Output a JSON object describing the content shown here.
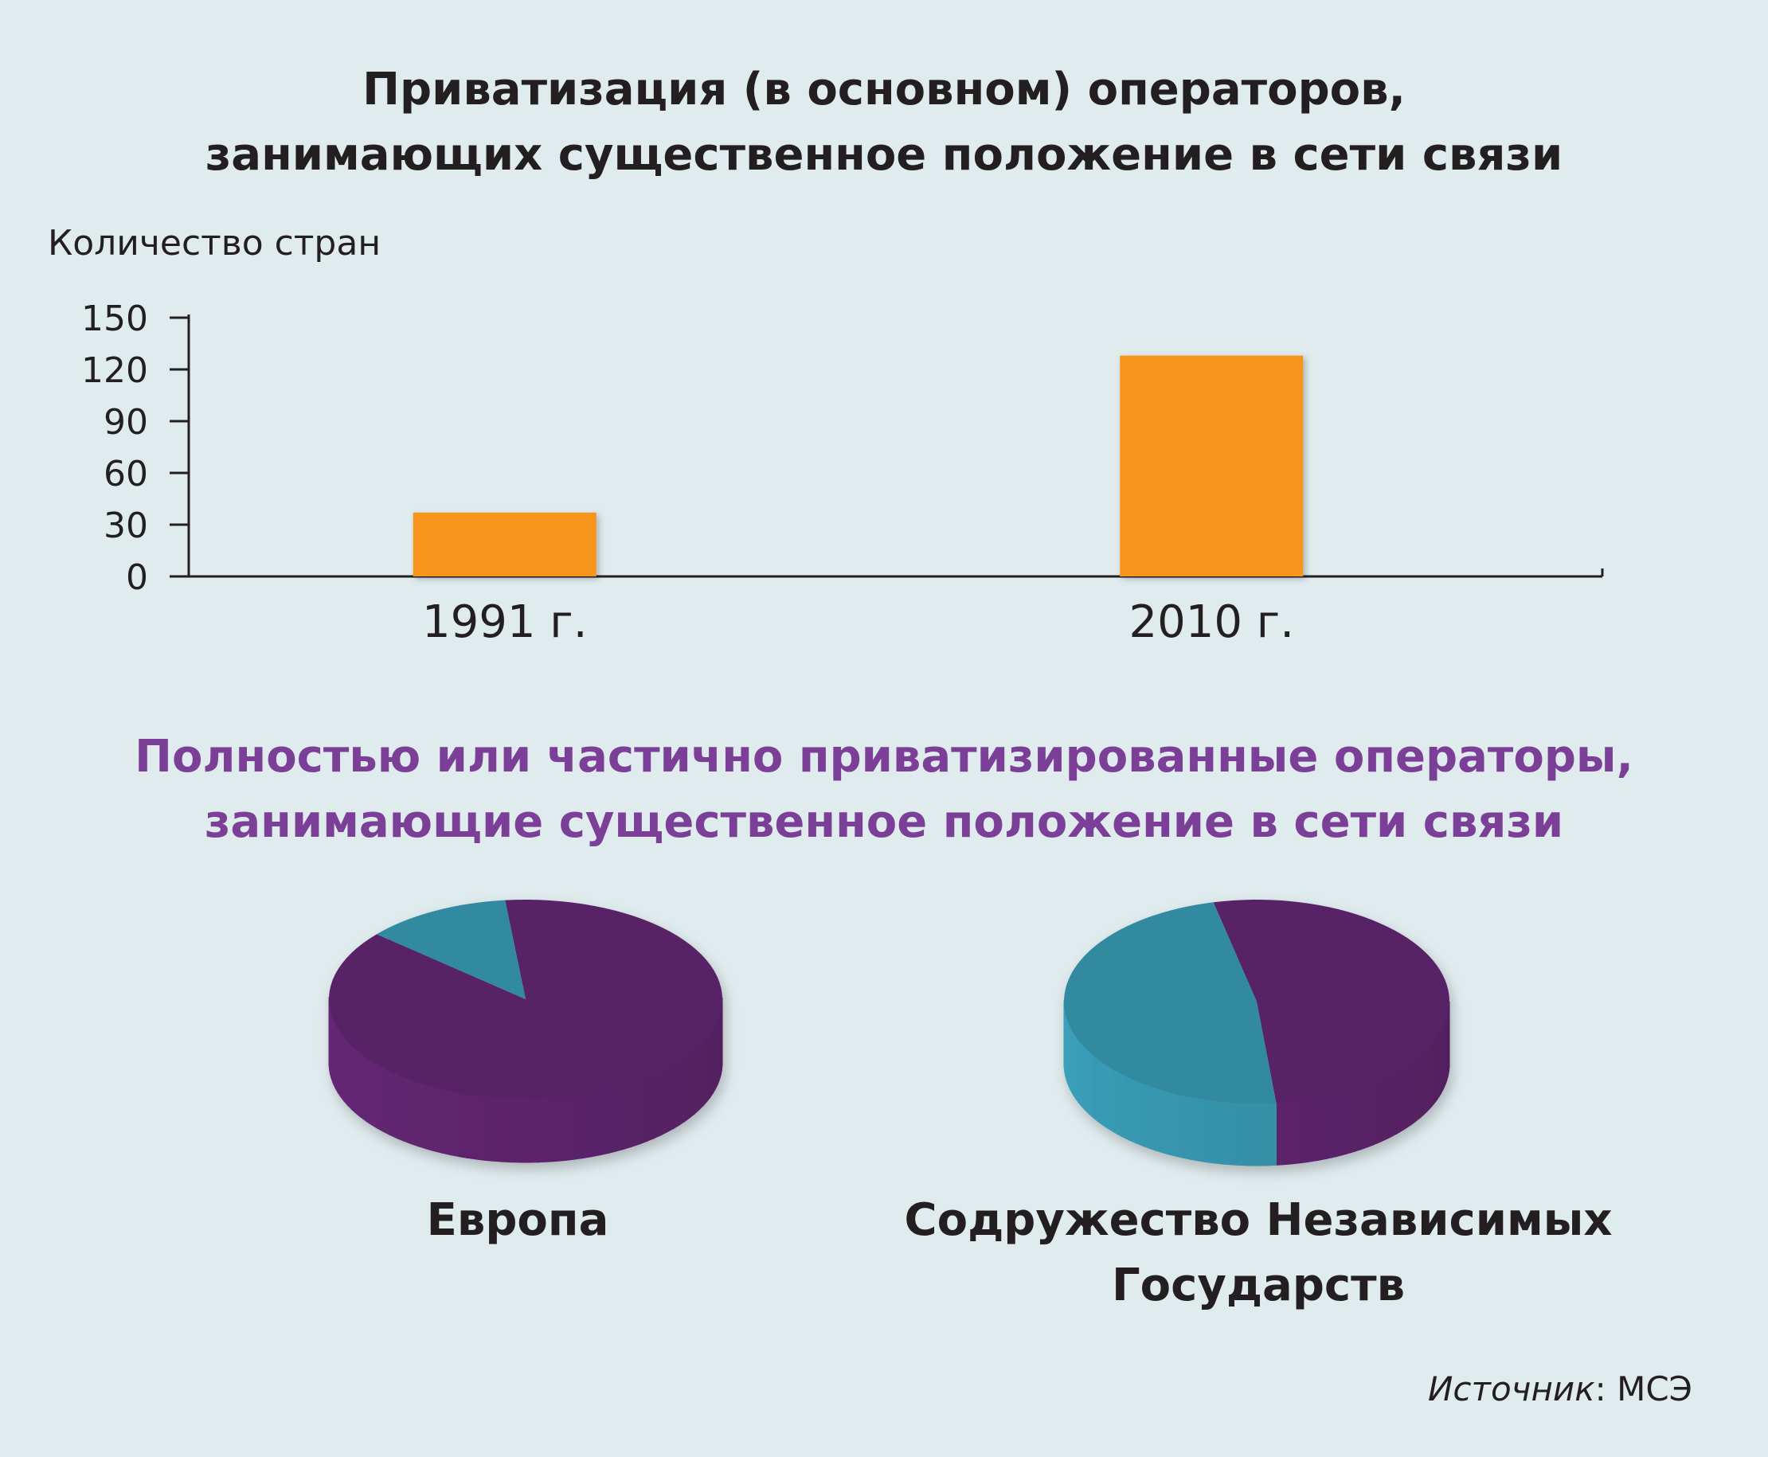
{
  "header": {
    "title_line1": "Приватизация (в основном) операторов,",
    "title_line2": "занимающих существенное положение в сети связи"
  },
  "pies_header": {
    "title_line1": "Полностью или частично приватизированные операторы,",
    "title_line2": "занимающие существенное положение в сети связи"
  },
  "source": {
    "label": "Источник",
    "sep": ": ",
    "value": "МСЭ"
  },
  "chart_data": [
    {
      "type": "bar",
      "ylabel": "Количество стран",
      "categories": [
        "1991 г.",
        "2010 г."
      ],
      "values": [
        37,
        128
      ],
      "ylim": [
        0,
        150
      ],
      "yticks": [
        "0",
        "30",
        "60",
        "90",
        "120",
        "150"
      ],
      "bar_color": "#f7941d"
    },
    {
      "type": "pie",
      "style": "3d",
      "charts": [
        {
          "label_lines": [
            "Европа"
          ],
          "slices": [
            {
              "value": 88,
              "color": "#582266"
            },
            {
              "value": 12,
              "color": "#338aa1"
            }
          ]
        },
        {
          "label_lines": [
            "Содружество Независимых",
            "Государств"
          ],
          "slices": [
            {
              "value": 52,
              "color": "#582266"
            },
            {
              "value": 48,
              "color": "#338aa1"
            }
          ]
        }
      ]
    }
  ]
}
